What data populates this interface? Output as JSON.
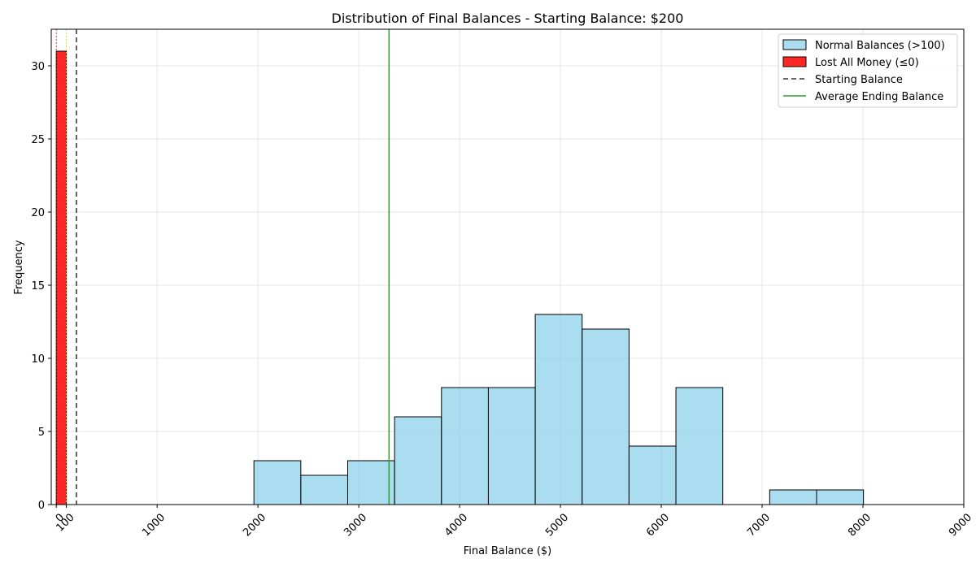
{
  "chart_data": {
    "type": "bar",
    "title": "Distribution of Final Balances - Starting Balance: $200",
    "xlabel": "Final Balance ($)",
    "ylabel": "Frequency",
    "xlim": [
      -50,
      9000
    ],
    "ylim": [
      0,
      32.5
    ],
    "grid": true,
    "legend_position": "top-right",
    "x_ticks": [
      0,
      100,
      1000,
      2000,
      3000,
      4000,
      5000,
      6000,
      7000,
      8000,
      9000
    ],
    "y_ticks": [
      0,
      5,
      10,
      15,
      20,
      25,
      30
    ],
    "bin_edges": [
      1960,
      2425,
      2890,
      3355,
      3820,
      4285,
      4750,
      5215,
      5680,
      6145,
      6610,
      7075,
      7540,
      8005
    ],
    "series": [
      {
        "name": "Normal Balances (>100)",
        "color": "#87ceeb",
        "values": [
          3,
          2,
          3,
          6,
          8,
          8,
          13,
          12,
          4,
          8,
          0,
          1,
          1
        ]
      },
      {
        "name": "Lost All Money (≤0)",
        "color": "#ff0000",
        "bin": [
          0,
          100
        ],
        "value": 31
      }
    ],
    "reference_lines": [
      {
        "name": "Starting Balance",
        "x": 200,
        "style": "dashed",
        "color": "#333333"
      },
      {
        "name": "Average Ending Balance",
        "x": 3300,
        "style": "solid",
        "color": "#2ca02c"
      }
    ],
    "marker_lines": [
      {
        "x": 0,
        "color": "#d62728"
      },
      {
        "x": 100,
        "color": "#ffbf00"
      }
    ]
  }
}
